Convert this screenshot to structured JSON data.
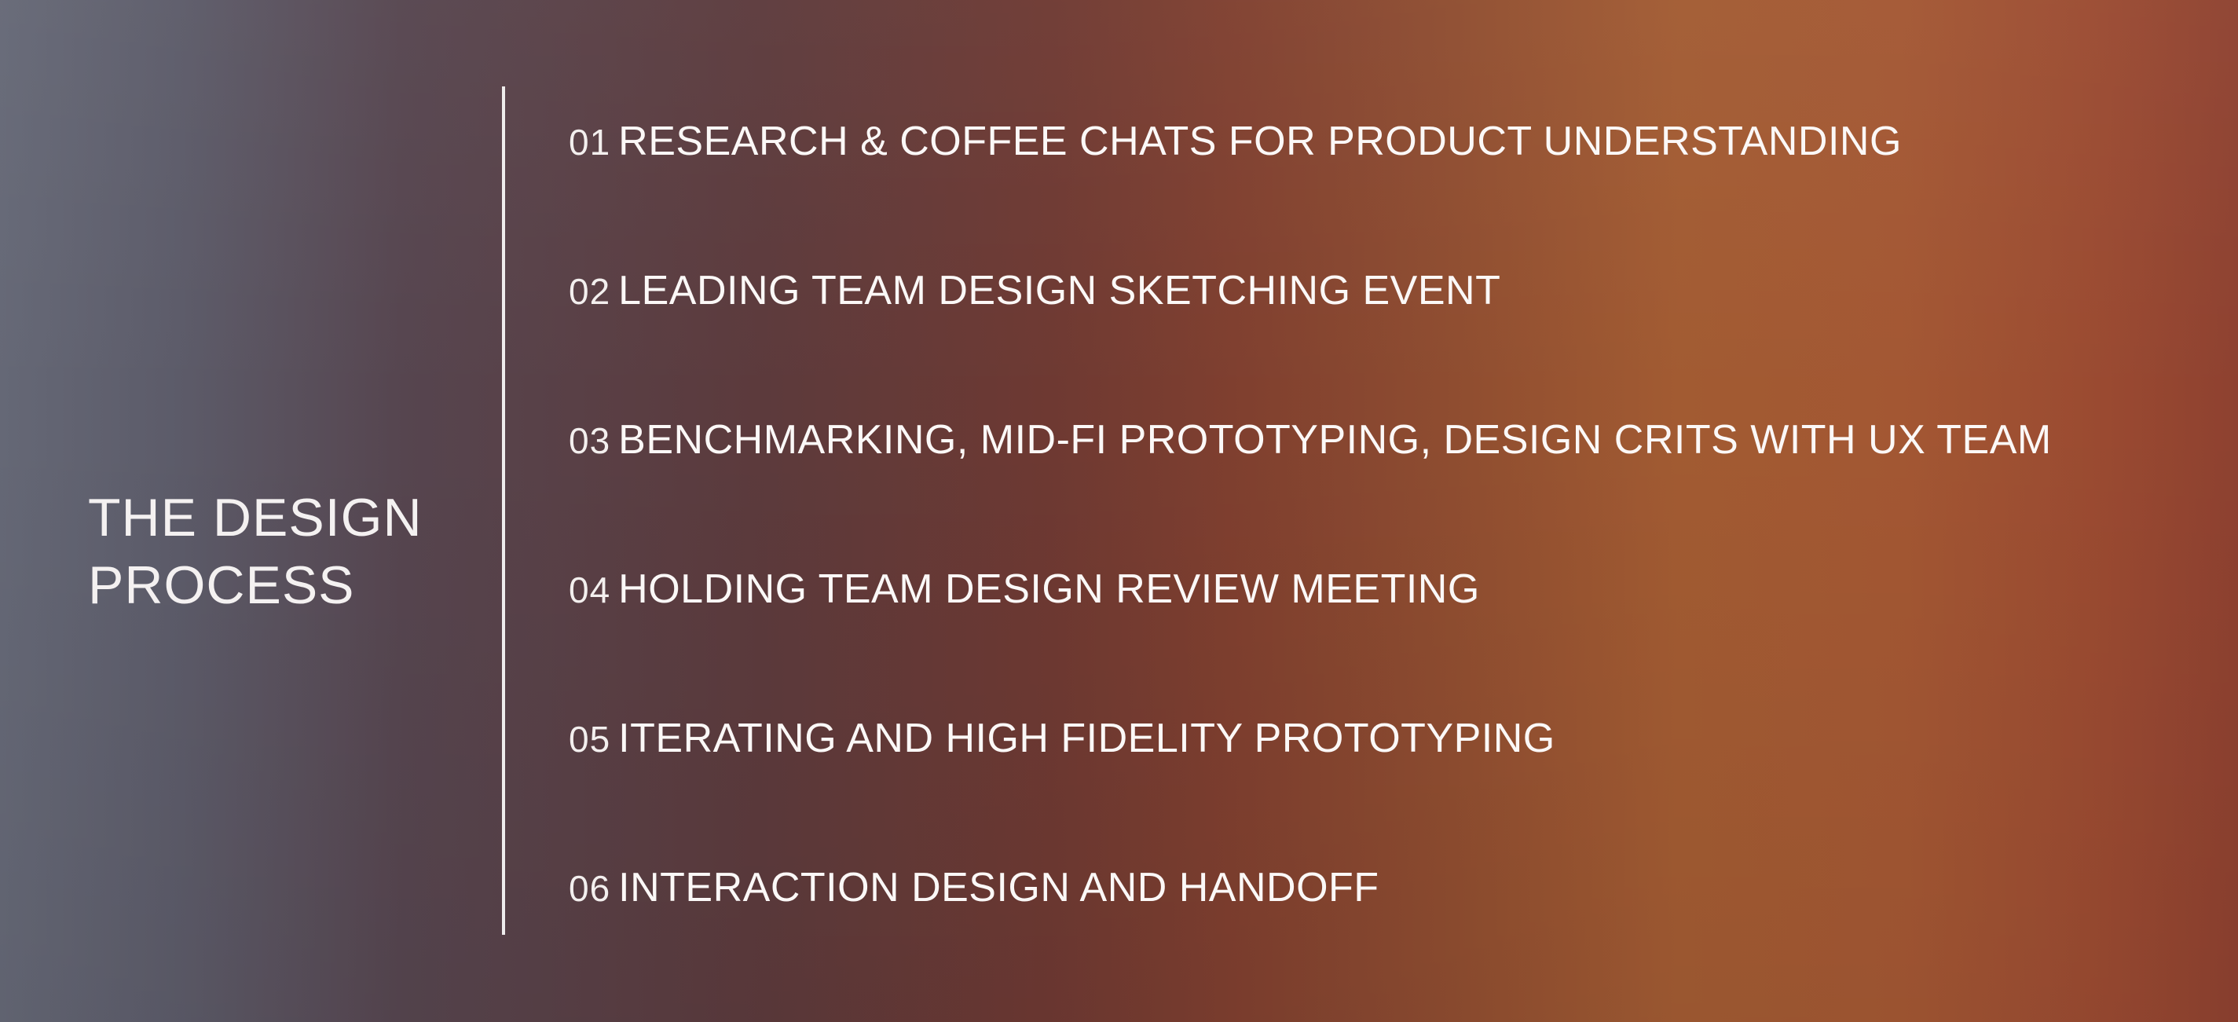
{
  "heading": {
    "line1": "THE DESIGN",
    "line2": "PROCESS"
  },
  "steps": [
    {
      "number": "01",
      "label": "RESEARCH & COFFEE CHATS FOR PRODUCT UNDERSTANDING"
    },
    {
      "number": "02",
      "label": "LEADING TEAM DESIGN SKETCHING EVENT"
    },
    {
      "number": "03",
      "label": "BENCHMARKING, MID-FI PROTOTYPING, DESIGN CRITS WITH UX TEAM"
    },
    {
      "number": "04",
      "label": "HOLDING TEAM DESIGN REVIEW MEETING"
    },
    {
      "number": "05",
      "label": "ITERATING AND HIGH FIDELITY PROTOTYPING"
    },
    {
      "number": "06",
      "label": "INTERACTION DESIGN AND HANDOFF"
    }
  ],
  "colors": {
    "gradient_left": "#656876",
    "gradient_middle": "#6e3932",
    "gradient_right": "#a35733",
    "text": "#ffffff"
  }
}
